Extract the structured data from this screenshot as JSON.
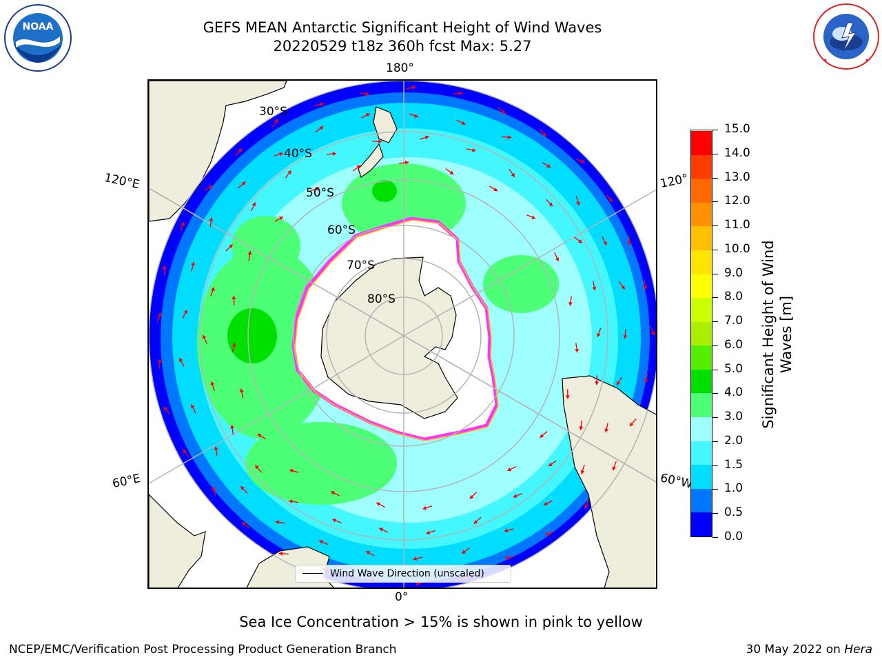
{
  "header": {
    "title_line1": "GEFS MEAN Antarctic Significant Height of Wind Waves",
    "title_line2": "20220529 t18z 360h fcst   Max: 5.27"
  },
  "logos": {
    "noaa": "NOAA",
    "noaa_ring": "NATIONAL OCEANIC AND ATMOSPHERIC ADMINISTRATION · U.S. DEPARTMENT OF COMMERCE",
    "nws_ring": "NATIONAL WEATHER SERVICE"
  },
  "map": {
    "longitude_labels": {
      "top": "180°",
      "bottom": "0°",
      "upper_left": "120°E",
      "lower_left": "60°E",
      "upper_right": "120°",
      "lower_right": "60°W"
    },
    "latitude_labels": [
      "30°S",
      "40°S",
      "50°S",
      "60°S",
      "70°S",
      "80°S"
    ],
    "legend": "Wind Wave Direction (unscaled)",
    "colors": {
      "land": "#efeddc",
      "ice": "#ffffff",
      "ice_edge": "#ff33ff",
      "arrow": "#ff0000",
      "grid": "#b4b4b4"
    }
  },
  "colorbar": {
    "label": "Significant Height of Wind Waves [m]",
    "ticks": [
      "0.0",
      "0.5",
      "1.0",
      "1.5",
      "2.0",
      "3.0",
      "4.0",
      "5.0",
      "6.0",
      "7.0",
      "8.0",
      "9.0",
      "10.0",
      "11.0",
      "12.0",
      "13.0",
      "14.0",
      "15.0"
    ],
    "colors": [
      "#0000ff",
      "#0077ff",
      "#00ddff",
      "#44f7ff",
      "#9efffe",
      "#4dff77",
      "#00e000",
      "#55ee00",
      "#aaee00",
      "#ccff00",
      "#ffff00",
      "#ffe400",
      "#ffc000",
      "#ff9000",
      "#ff6a00",
      "#ff3c00",
      "#ff0000"
    ]
  },
  "footer": {
    "note": "Sea Ice Concentration > 15% is shown in pink to yellow",
    "left": "NCEP/EMC/Verification Post Processing Product Generation Branch",
    "date": "30 May 2022 on ",
    "machine": "Hera"
  }
}
